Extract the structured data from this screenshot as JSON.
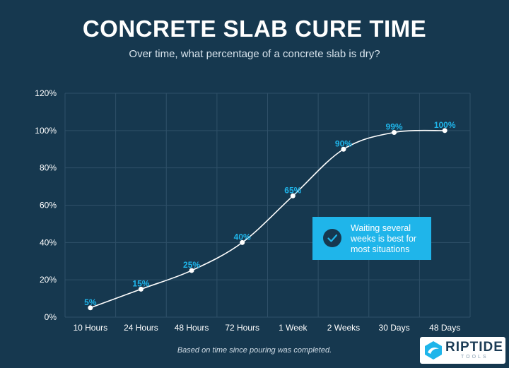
{
  "title": "CONCRETE SLAB CURE TIME",
  "subtitle": "Over time, what percentage of a concrete slab is dry?",
  "footnote": "Based on time since pouring was completed.",
  "callout": {
    "icon": "check-circle-icon",
    "text": "Waiting several weeks is best for most situations",
    "color": "#1fb5ea"
  },
  "logo": {
    "name": "RIPTIDE",
    "sub": "TOOLS"
  },
  "chart_data": {
    "type": "line",
    "title": "CONCRETE SLAB CURE TIME",
    "subtitle": "Over time, what percentage of a concrete slab is dry?",
    "categories": [
      "10 Hours",
      "24 Hours",
      "48 Hours",
      "72 Hours",
      "1 Week",
      "2 Weeks",
      "30 Days",
      "48 Days"
    ],
    "values": [
      5,
      15,
      25,
      40,
      65,
      90,
      99,
      100
    ],
    "data_labels": [
      "5%",
      "15%",
      "25%",
      "40%",
      "65%",
      "90%",
      "99%",
      "100%"
    ],
    "yticks": [
      "0%",
      "20%",
      "40%",
      "60%",
      "80%",
      "100%",
      "120%"
    ],
    "ylim": [
      0,
      120
    ],
    "grid": true,
    "line_color": "#ffffff",
    "label_color": "#1fb5ea",
    "background": "#16384f"
  }
}
